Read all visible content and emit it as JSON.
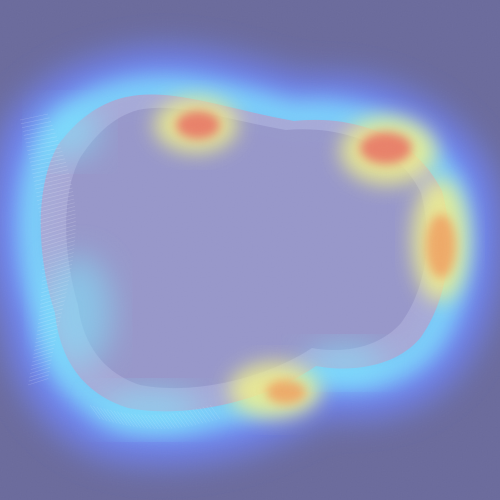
{
  "image": {
    "description_visible_text": "",
    "colors": {
      "background": "#6a6a9c",
      "object_fill": "#a9a9d6",
      "object_core": "#8f8fc5",
      "heat_blue": "#6f86ff",
      "heat_cyan": "#7fe8ff",
      "heat_yellow": "#f3f28a",
      "heat_orange": "#f1a060",
      "heat_red": "#ea6f62"
    },
    "heatmap": {
      "scale": "jet",
      "hotspots": [
        {
          "label": "top-left-lobe",
          "intensity": 0.95
        },
        {
          "label": "top-right-lobe",
          "intensity": 1.0
        },
        {
          "label": "right-edge",
          "intensity": 0.88
        },
        {
          "label": "bottom-center",
          "intensity": 0.82
        }
      ]
    }
  }
}
